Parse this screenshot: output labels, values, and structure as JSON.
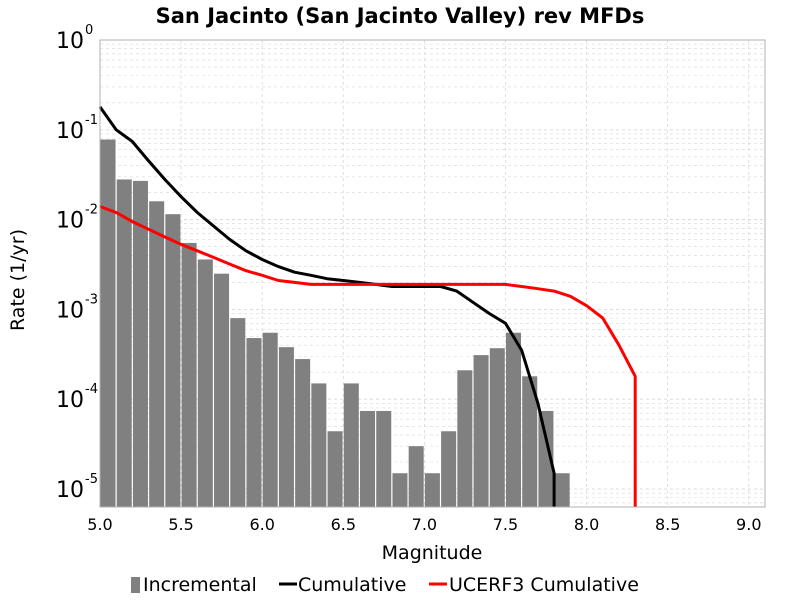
{
  "chart_data": {
    "type": "bar",
    "title": "San Jacinto (San Jacinto Valley) rev MFDs",
    "xlabel": "Magnitude",
    "ylabel": "Rate (1/yr)",
    "xlim": [
      5.0,
      9.1
    ],
    "ylim_log10": [
      -5.2,
      0
    ],
    "y_scale": "log",
    "grid": true,
    "legend_position": "bottom",
    "x_ticks": [
      "5.0",
      "5.5",
      "6.0",
      "6.5",
      "7.0",
      "7.5",
      "8.0",
      "8.5",
      "9.0"
    ],
    "y_ticks": [
      {
        "base": "10",
        "exp": "0"
      },
      {
        "base": "10",
        "exp": "-1"
      },
      {
        "base": "10",
        "exp": "-2"
      },
      {
        "base": "10",
        "exp": "-3"
      },
      {
        "base": "10",
        "exp": "-4"
      },
      {
        "base": "10",
        "exp": "-5"
      }
    ],
    "colors": {
      "incremental": "#808080",
      "cumulative": "#000000",
      "ucerf3_cumulative": "#ff0000",
      "grid": "#d8d8d8"
    },
    "series": [
      {
        "name": "Incremental",
        "kind": "bar",
        "x": [
          5.05,
          5.15,
          5.25,
          5.35,
          5.45,
          5.55,
          5.65,
          5.75,
          5.85,
          5.95,
          6.05,
          6.15,
          6.25,
          6.35,
          6.45,
          6.55,
          6.65,
          6.75,
          6.85,
          6.95,
          7.05,
          7.15,
          7.25,
          7.35,
          7.45,
          7.55,
          7.65,
          7.75,
          7.85
        ],
        "values": [
          0.078,
          0.028,
          0.027,
          0.016,
          0.0115,
          0.0055,
          0.0036,
          0.0025,
          0.0008,
          0.00048,
          0.00055,
          0.00038,
          0.00028,
          0.00015,
          4.4e-05,
          0.00015,
          7.4e-05,
          7.4e-05,
          1.5e-05,
          3e-05,
          1.5e-05,
          4.4e-05,
          0.00021,
          0.00031,
          0.00037,
          0.00055,
          0.00018,
          7.4e-05,
          1.5e-05
        ]
      },
      {
        "name": "Cumulative",
        "kind": "line",
        "x": [
          5.0,
          5.1,
          5.2,
          5.3,
          5.4,
          5.5,
          5.6,
          5.7,
          5.8,
          5.9,
          6.0,
          6.1,
          6.2,
          6.3,
          6.4,
          6.5,
          6.6,
          6.7,
          6.8,
          6.9,
          7.0,
          7.1,
          7.2,
          7.3,
          7.4,
          7.5,
          7.6,
          7.7,
          7.8,
          7.8
        ],
        "values": [
          0.18,
          0.1,
          0.074,
          0.045,
          0.028,
          0.018,
          0.012,
          0.0085,
          0.006,
          0.0045,
          0.0036,
          0.003,
          0.0026,
          0.0024,
          0.0022,
          0.0021,
          0.002,
          0.0019,
          0.0018,
          0.0018,
          0.0018,
          0.0018,
          0.0016,
          0.0012,
          0.0009,
          0.0007,
          0.00035,
          9e-05,
          1.5e-05,
          6.3e-06
        ]
      },
      {
        "name": "UCERF3 Cumulative",
        "kind": "line",
        "x": [
          5.0,
          5.1,
          5.2,
          5.3,
          5.4,
          5.5,
          5.6,
          5.7,
          5.8,
          5.9,
          6.0,
          6.1,
          6.2,
          6.3,
          6.4,
          6.5,
          6.6,
          6.7,
          6.8,
          6.9,
          7.0,
          7.1,
          7.2,
          7.3,
          7.4,
          7.5,
          7.6,
          7.7,
          7.8,
          7.9,
          8.0,
          8.1,
          8.2,
          8.3,
          8.3
        ],
        "values": [
          0.014,
          0.012,
          0.0095,
          0.0078,
          0.0064,
          0.0053,
          0.0045,
          0.0038,
          0.0032,
          0.0027,
          0.0024,
          0.0021,
          0.002,
          0.0019,
          0.0019,
          0.0019,
          0.0019,
          0.0019,
          0.0019,
          0.0019,
          0.0019,
          0.0019,
          0.0019,
          0.0019,
          0.0019,
          0.0019,
          0.0018,
          0.0017,
          0.0016,
          0.0014,
          0.0011,
          0.0008,
          0.0004,
          0.00018,
          6.3e-06
        ]
      }
    ]
  }
}
